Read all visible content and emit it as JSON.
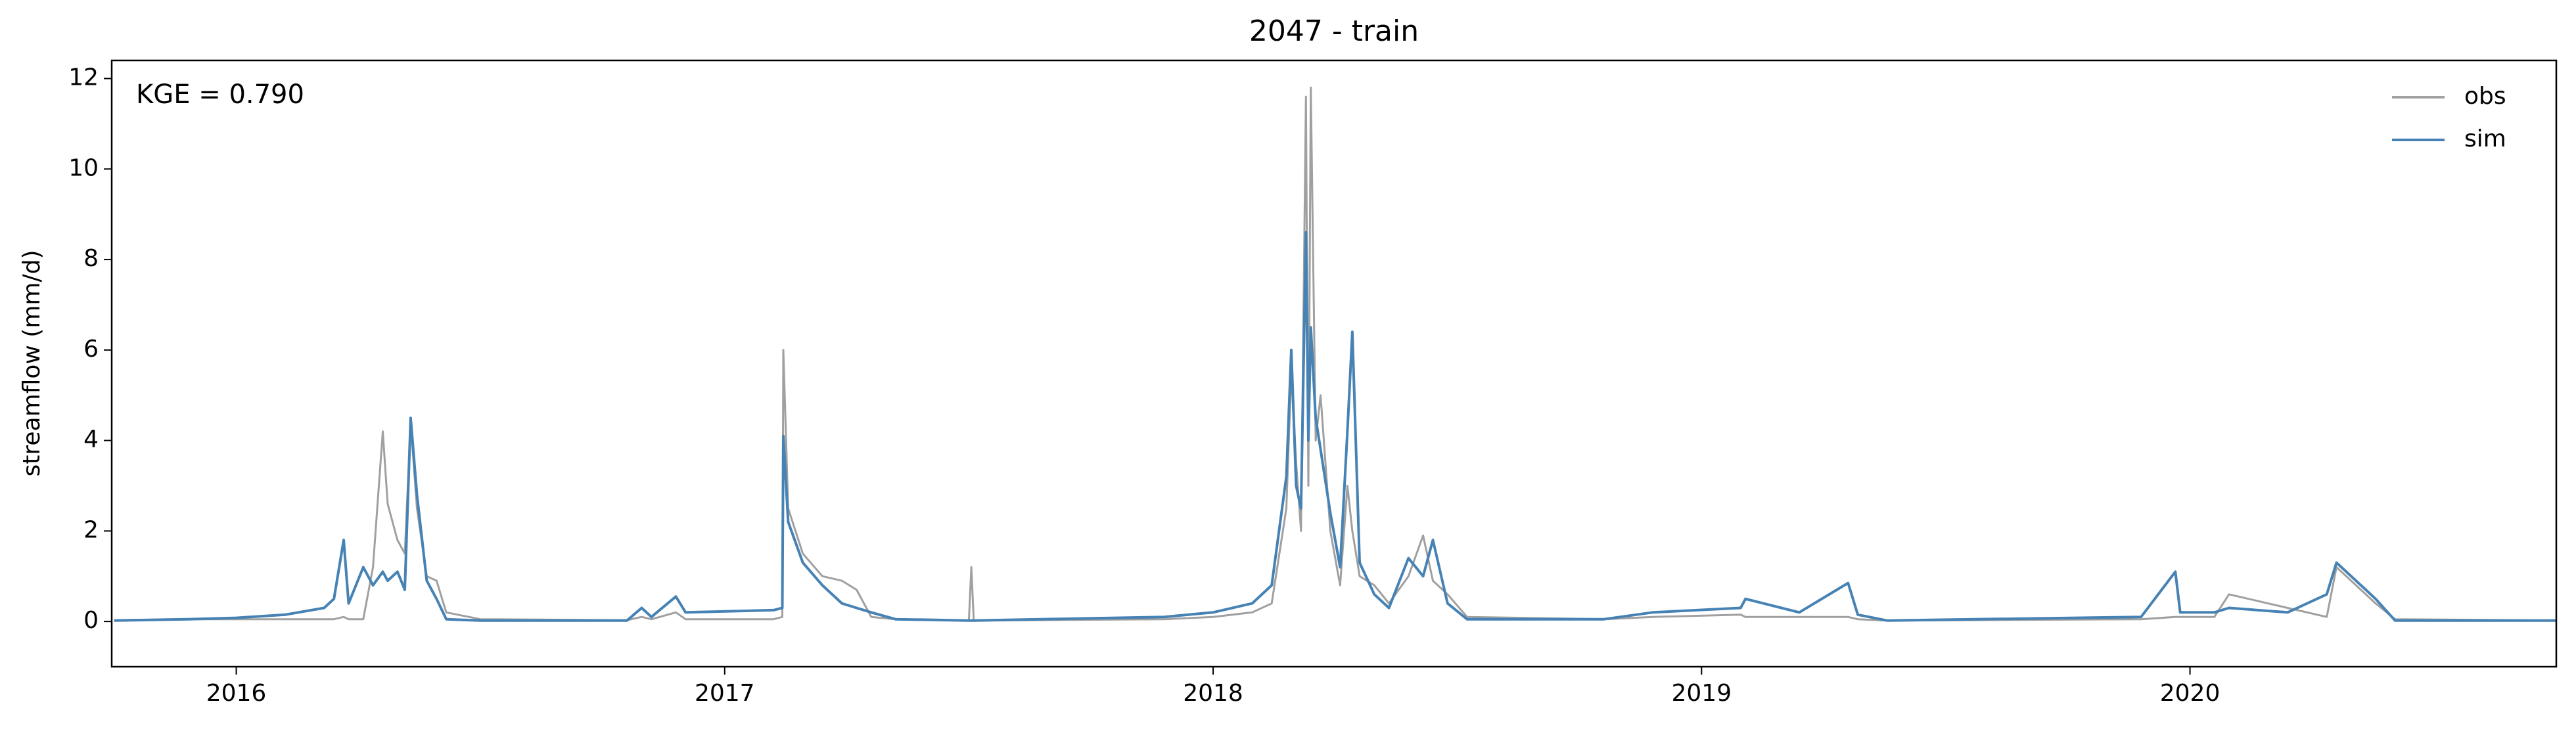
{
  "chart_data": {
    "type": "line",
    "title": "2047 - train",
    "ylabel": "streamflow (mm/d)",
    "annotation": "KGE = 0.790",
    "x": [
      2015.75,
      2015.9,
      2016.0,
      2016.1,
      2016.18,
      2016.2,
      2016.22,
      2016.23,
      2016.26,
      2016.28,
      2016.3,
      2016.31,
      2016.33,
      2016.345,
      2016.357,
      2016.37,
      2016.39,
      2016.41,
      2016.43,
      2016.5,
      2016.8,
      2016.83,
      2016.85,
      2016.9,
      2016.92,
      2017.1,
      2017.118,
      2017.12,
      2017.13,
      2017.16,
      2017.2,
      2017.24,
      2017.27,
      2017.3,
      2017.35,
      2017.5,
      2017.505,
      2017.51,
      2017.9,
      2018.0,
      2018.08,
      2018.12,
      2018.15,
      2018.16,
      2018.17,
      2018.18,
      2018.19,
      2018.195,
      2018.2,
      2018.21,
      2018.22,
      2018.24,
      2018.26,
      2018.275,
      2018.285,
      2018.3,
      2018.33,
      2018.36,
      2018.4,
      2018.43,
      2018.45,
      2018.48,
      2018.52,
      2018.8,
      2018.9,
      2019.08,
      2019.09,
      2019.2,
      2019.3,
      2019.32,
      2019.38,
      2019.9,
      2019.97,
      2019.98,
      2020.05,
      2020.08,
      2020.2,
      2020.28,
      2020.3,
      2020.33,
      2020.38,
      2020.42,
      2020.75
    ],
    "series": [
      {
        "name": "obs",
        "color": "#a0a0a0",
        "values": [
          0.03,
          0.05,
          0.05,
          0.05,
          0.05,
          0.05,
          0.1,
          0.05,
          0.05,
          1.2,
          4.2,
          2.6,
          1.8,
          1.5,
          4.4,
          2.5,
          1.0,
          0.9,
          0.2,
          0.05,
          0.03,
          0.1,
          0.05,
          0.2,
          0.05,
          0.05,
          0.1,
          6.0,
          2.5,
          1.5,
          1.0,
          0.9,
          0.7,
          0.1,
          0.05,
          0.02,
          1.2,
          0.02,
          0.05,
          0.1,
          0.2,
          0.4,
          2.5,
          5.5,
          3.5,
          2.0,
          11.6,
          3.0,
          11.8,
          4.0,
          5.0,
          2.0,
          0.8,
          3.0,
          2.0,
          1.0,
          0.8,
          0.4,
          1.0,
          1.9,
          0.9,
          0.6,
          0.1,
          0.05,
          0.1,
          0.15,
          0.1,
          0.1,
          0.1,
          0.05,
          0.02,
          0.05,
          0.1,
          0.1,
          0.1,
          0.6,
          0.3,
          0.1,
          1.2,
          0.9,
          0.4,
          0.05,
          0.02
        ]
      },
      {
        "name": "sim",
        "color": "#4682b4",
        "values": [
          0.02,
          0.05,
          0.08,
          0.15,
          0.3,
          0.5,
          1.8,
          0.4,
          1.2,
          0.8,
          1.1,
          0.9,
          1.1,
          0.7,
          4.5,
          2.8,
          0.9,
          0.5,
          0.05,
          0.02,
          0.02,
          0.3,
          0.1,
          0.55,
          0.2,
          0.25,
          0.3,
          4.1,
          2.2,
          1.3,
          0.8,
          0.4,
          0.3,
          0.2,
          0.05,
          0.02,
          0.02,
          0.02,
          0.1,
          0.2,
          0.4,
          0.8,
          3.2,
          6.0,
          3.0,
          2.5,
          8.6,
          4.0,
          6.5,
          4.5,
          3.8,
          2.4,
          1.2,
          4.2,
          6.4,
          1.3,
          0.6,
          0.3,
          1.4,
          1.0,
          1.8,
          0.4,
          0.05,
          0.05,
          0.2,
          0.3,
          0.5,
          0.2,
          0.85,
          0.15,
          0.02,
          0.1,
          1.1,
          0.2,
          0.2,
          0.3,
          0.2,
          0.6,
          1.3,
          1.0,
          0.5,
          0.02,
          0.02
        ]
      }
    ],
    "xlim": [
      2015.745,
      2020.75
    ],
    "xticks": [
      2016,
      2017,
      2018,
      2019,
      2020
    ],
    "ylim": [
      -1,
      12.4
    ],
    "yticks": [
      0,
      2,
      4,
      6,
      8,
      10,
      12
    ],
    "legend": "upper right"
  }
}
